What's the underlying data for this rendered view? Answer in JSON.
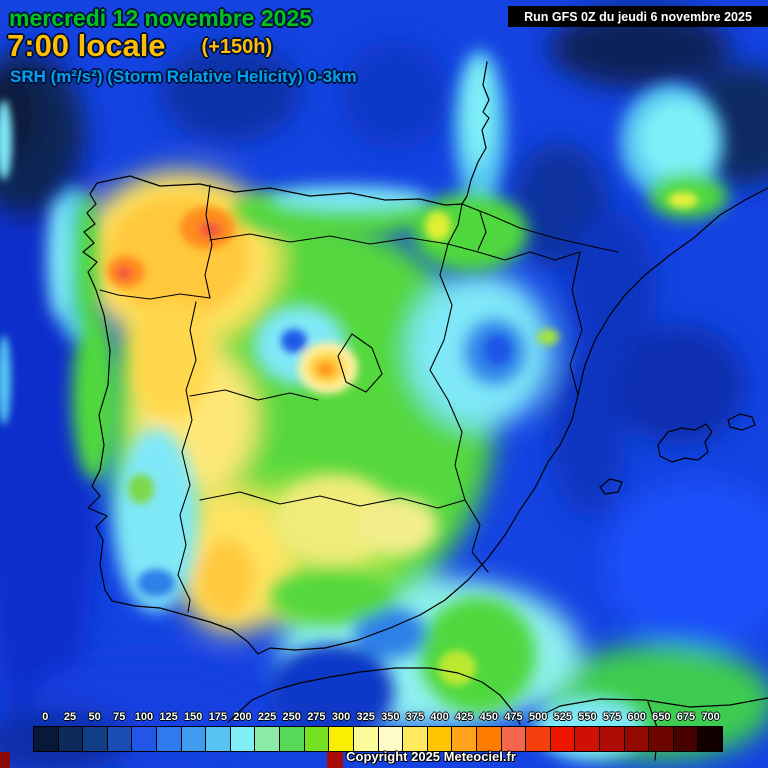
{
  "header": {
    "date": "mercredi 12 novembre 2025",
    "time": "7:00 locale",
    "forecast_offset": "(+150h)",
    "parameter": "SRH (m²/s²) (Storm Relative Helicity) 0-3km",
    "run_info": "Run GFS 0Z du jeudi 6 novembre 2025",
    "date_color": "#00c41e",
    "time_color": "#ffbe00",
    "parameter_color": "#00a2ee"
  },
  "legend": {
    "cells": [
      {
        "label": "0",
        "color": "#0a1838"
      },
      {
        "label": "25",
        "color": "#0e2a5a"
      },
      {
        "label": "50",
        "color": "#123e86"
      },
      {
        "label": "75",
        "color": "#1a4db6"
      },
      {
        "label": "100",
        "color": "#2156e6"
      },
      {
        "label": "125",
        "color": "#2e7bf0"
      },
      {
        "label": "150",
        "color": "#3f9bf0"
      },
      {
        "label": "175",
        "color": "#58c2f2"
      },
      {
        "label": "200",
        "color": "#7feff8"
      },
      {
        "label": "225",
        "color": "#8deba5"
      },
      {
        "label": "250",
        "color": "#55d957"
      },
      {
        "label": "275",
        "color": "#76e022"
      },
      {
        "label": "300",
        "color": "#f8f000"
      },
      {
        "label": "325",
        "color": "#fbfb9a"
      },
      {
        "label": "350",
        "color": "#fffcc8"
      },
      {
        "label": "375",
        "color": "#ffe95e"
      },
      {
        "label": "400",
        "color": "#ffc400"
      },
      {
        "label": "425",
        "color": "#ffa318"
      },
      {
        "label": "450",
        "color": "#ff7c00"
      },
      {
        "label": "475",
        "color": "#f4674d"
      },
      {
        "label": "500",
        "color": "#f5400e"
      },
      {
        "label": "525",
        "color": "#ee1500"
      },
      {
        "label": "550",
        "color": "#ce1104"
      },
      {
        "label": "575",
        "color": "#ae0c04"
      },
      {
        "label": "600",
        "color": "#920a02"
      },
      {
        "label": "650",
        "color": "#6e0600"
      },
      {
        "label": "675",
        "color": "#460200"
      },
      {
        "label": "700",
        "color": "#120000"
      }
    ]
  },
  "footer": {
    "copyright": "Copyright 2025 Meteociel.fr"
  }
}
